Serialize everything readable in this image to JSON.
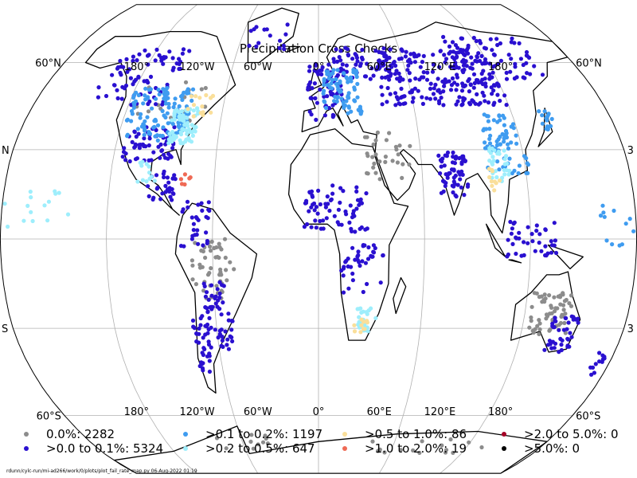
{
  "title": "Precipitation Cross Checks",
  "lon_labels": [
    "180°",
    "120°W",
    "60°W",
    "0°",
    "60°E",
    "120°E",
    "180°"
  ],
  "lat_labels": [
    {
      "text": "60°N",
      "lat": 60,
      "side": "left"
    },
    {
      "text": "N",
      "lat": 30,
      "side": "left"
    },
    {
      "text": "S",
      "lat": -30,
      "side": "left"
    },
    {
      "text": "60°S",
      "lat": -60,
      "side": "left"
    },
    {
      "text": "60°N",
      "lat": 60,
      "side": "right"
    },
    {
      "text": "3",
      "lat": 30,
      "side": "right"
    },
    {
      "text": "3",
      "lat": -30,
      "side": "right"
    },
    {
      "text": "60°S",
      "lat": -60,
      "side": "right"
    }
  ],
  "legend": [
    {
      "label": "0.0%: 2282",
      "color": "#8c8c8c"
    },
    {
      "label": ">0.0 to 0.1%: 5324",
      "color": "#2a10d0"
    },
    {
      "label": ">0.1 to 0.2%: 1197",
      "color": "#3f9cf0"
    },
    {
      "label": ">0.2 to 0.5%: 647",
      "color": "#9eeefc"
    },
    {
      "label": ">0.5 to 1.0%: 86",
      "color": "#fadf9a"
    },
    {
      "label": ">1.0 to 2.0%: 19",
      "color": "#ef6a55"
    },
    {
      "label": ">2.0 to 5.0%: 0",
      "color": "#a50026"
    },
    {
      "label": ">5.0%: 0",
      "color": "#000000"
    }
  ],
  "footer": "rdunn/cylc-run/mi-ad266/work/0/plots/plot_fail_rate_map.py    06-Aug-2022 01:19",
  "map_data": {
    "projection": "Robinson",
    "central_longitude": 0,
    "gridline_longitudes": [
      -180,
      -120,
      -60,
      0,
      60,
      120,
      180
    ],
    "gridline_latitudes": [
      -60,
      -30,
      0,
      30,
      60
    ],
    "station_clusters": [
      {
        "lon": -100,
        "lat": 42,
        "cls": 2,
        "spread": [
          20,
          9
        ],
        "n": 120
      },
      {
        "lon": -82,
        "lat": 38,
        "cls": 3,
        "spread": [
          8,
          6
        ],
        "n": 70
      },
      {
        "lon": -100,
        "lat": 32,
        "cls": 1,
        "spread": [
          15,
          6
        ],
        "n": 60
      },
      {
        "lon": -120,
        "lat": 55,
        "cls": 1,
        "spread": [
          25,
          10
        ],
        "n": 80
      },
      {
        "lon": -75,
        "lat": 45,
        "cls": 4,
        "spread": [
          8,
          4
        ],
        "n": 14
      },
      {
        "lon": -95,
        "lat": 45,
        "cls": 0,
        "spread": [
          25,
          8
        ],
        "n": 20
      },
      {
        "lon": -90,
        "lat": 18,
        "cls": 1,
        "spread": [
          8,
          5
        ],
        "n": 30
      },
      {
        "lon": -100,
        "lat": 22,
        "cls": 3,
        "spread": [
          6,
          4
        ],
        "n": 12
      },
      {
        "lon": -75,
        "lat": 20,
        "cls": 5,
        "spread": [
          5,
          2
        ],
        "n": 6
      },
      {
        "lon": -60,
        "lat": -10,
        "cls": 0,
        "spread": [
          12,
          10
        ],
        "n": 50
      },
      {
        "lon": -58,
        "lat": -25,
        "cls": 1,
        "spread": [
          8,
          12
        ],
        "n": 60
      },
      {
        "lon": -70,
        "lat": -35,
        "cls": 1,
        "spread": [
          4,
          10
        ],
        "n": 30
      },
      {
        "lon": -70,
        "lat": 5,
        "cls": 1,
        "spread": [
          8,
          8
        ],
        "n": 30
      },
      {
        "lon": 15,
        "lat": 50,
        "cls": 2,
        "spread": [
          12,
          8
        ],
        "n": 80
      },
      {
        "lon": 5,
        "lat": 50,
        "cls": 1,
        "spread": [
          12,
          10
        ],
        "n": 60
      },
      {
        "lon": 30,
        "lat": 60,
        "cls": 1,
        "spread": [
          20,
          6
        ],
        "n": 60
      },
      {
        "lon": 80,
        "lat": 55,
        "cls": 1,
        "spread": [
          40,
          10
        ],
        "n": 220
      },
      {
        "lon": 125,
        "lat": 62,
        "cls": 1,
        "spread": [
          30,
          8
        ],
        "n": 80
      },
      {
        "lon": 110,
        "lat": 32,
        "cls": 2,
        "spread": [
          12,
          10
        ],
        "n": 70
      },
      {
        "lon": 105,
        "lat": 25,
        "cls": 3,
        "spread": [
          6,
          6
        ],
        "n": 30
      },
      {
        "lon": 102,
        "lat": 20,
        "cls": 4,
        "spread": [
          4,
          4
        ],
        "n": 10
      },
      {
        "lon": 78,
        "lat": 22,
        "cls": 1,
        "spread": [
          8,
          8
        ],
        "n": 60
      },
      {
        "lon": 40,
        "lat": 28,
        "cls": 0,
        "spread": [
          15,
          8
        ],
        "n": 30
      },
      {
        "lon": 10,
        "lat": 10,
        "cls": 1,
        "spread": [
          18,
          8
        ],
        "n": 70
      },
      {
        "lon": 25,
        "lat": -10,
        "cls": 1,
        "spread": [
          12,
          8
        ],
        "n": 40
      },
      {
        "lon": 28,
        "lat": -27,
        "cls": 3,
        "spread": [
          6,
          4
        ],
        "n": 25
      },
      {
        "lon": 25,
        "lat": -30,
        "cls": 4,
        "spread": [
          4,
          3
        ],
        "n": 10
      },
      {
        "lon": 135,
        "lat": -25,
        "cls": 0,
        "spread": [
          12,
          7
        ],
        "n": 60
      },
      {
        "lon": 145,
        "lat": -32,
        "cls": 1,
        "spread": [
          8,
          6
        ],
        "n": 40
      },
      {
        "lon": 120,
        "lat": 0,
        "cls": 1,
        "spread": [
          15,
          6
        ],
        "n": 40
      },
      {
        "lon": 140,
        "lat": 38,
        "cls": 2,
        "spread": [
          4,
          5
        ],
        "n": 15
      },
      {
        "lon": 172,
        "lat": -42,
        "cls": 1,
        "spread": [
          4,
          4
        ],
        "n": 12
      },
      {
        "lon": -160,
        "lat": 10,
        "cls": 3,
        "spread": [
          20,
          8
        ],
        "n": 15
      },
      {
        "lon": 170,
        "lat": 5,
        "cls": 2,
        "spread": [
          12,
          8
        ],
        "n": 12
      },
      {
        "lon": -40,
        "lat": 70,
        "cls": 1,
        "spread": [
          15,
          5
        ],
        "n": 15
      },
      {
        "lon": -60,
        "lat": -70,
        "cls": 0,
        "spread": [
          20,
          4
        ],
        "n": 10
      },
      {
        "lon": 90,
        "lat": -72,
        "cls": 0,
        "spread": [
          50,
          3
        ],
        "n": 15
      }
    ]
  }
}
